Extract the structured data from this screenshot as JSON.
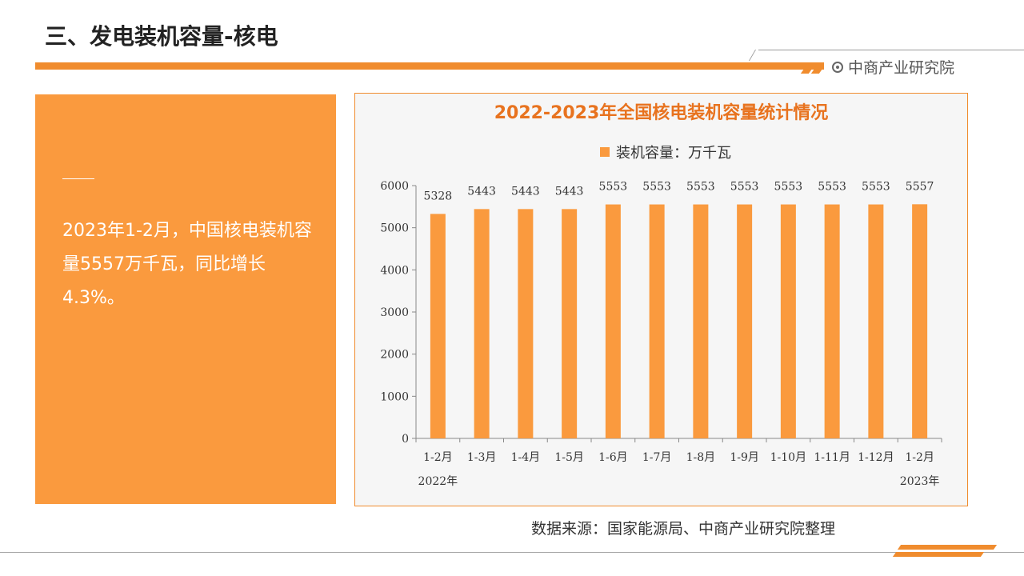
{
  "header": {
    "title": "三、发电装机容量-核电",
    "brand": "中商产业研究院"
  },
  "side_panel": {
    "text": "2023年1-2月，中国核电装机容量5557万千瓦，同比增长4.3%。"
  },
  "footer": {
    "source": "数据来源：国家能源局、中商产业研究院整理"
  },
  "colors": {
    "accent": "#f08c2e",
    "bar": "#fa9a3e",
    "chart_title": "#e8731f",
    "panel": "#fa9a3e"
  },
  "chart_data": {
    "type": "bar",
    "title": "2022-2023年全国核电装机容量统计情况",
    "legend": "装机容量：万千瓦",
    "legend_position": "top",
    "categories": [
      "1-2月",
      "1-3月",
      "1-4月",
      "1-5月",
      "1-6月",
      "1-7月",
      "1-8月",
      "1-9月",
      "1-10月",
      "1-11月",
      "1-12月",
      "1-2月"
    ],
    "group_labels": [
      {
        "label": "2022年",
        "category_index": 0
      },
      {
        "label": "2023年",
        "category_index": 11
      }
    ],
    "series": [
      {
        "name": "装机容量：万千瓦",
        "values": [
          5328,
          5443,
          5443,
          5443,
          5553,
          5553,
          5553,
          5553,
          5553,
          5553,
          5553,
          5557
        ]
      }
    ],
    "ylim": [
      0,
      6000
    ],
    "yticks": [
      0,
      1000,
      2000,
      3000,
      4000,
      5000,
      6000
    ],
    "grid": false
  }
}
